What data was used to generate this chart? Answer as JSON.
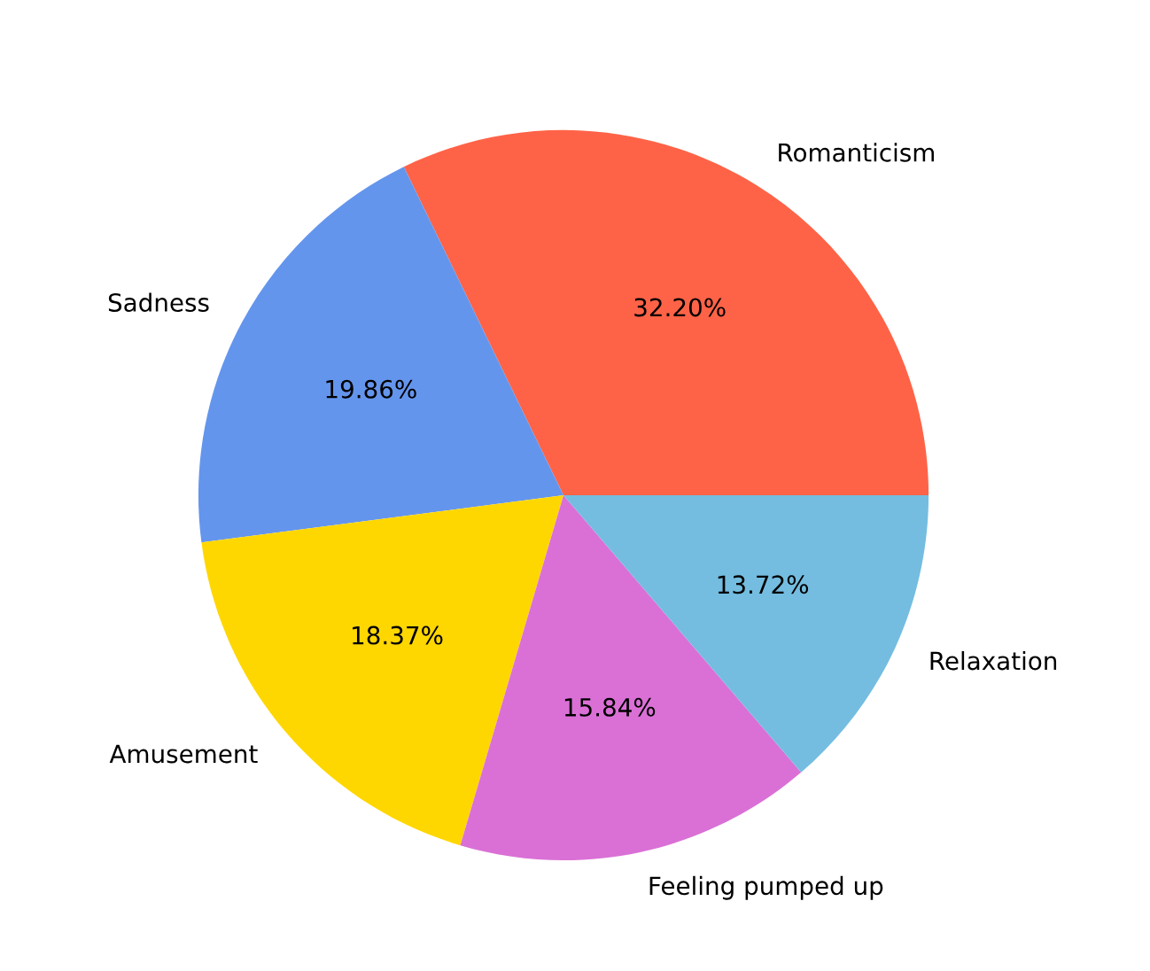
{
  "chart_data": {
    "type": "pie",
    "categories": [
      "Romanticism",
      "Sadness",
      "Amusement",
      "Feeling pumped up",
      "Relaxation"
    ],
    "values": [
      32.2,
      19.86,
      18.37,
      15.84,
      13.72
    ],
    "value_labels": [
      "32.20%",
      "19.86%",
      "18.37%",
      "15.84%",
      "13.72%"
    ],
    "colors": [
      "#ff6347",
      "#6495ed",
      "#ffd700",
      "#da70d6",
      "#74bde0"
    ]
  }
}
